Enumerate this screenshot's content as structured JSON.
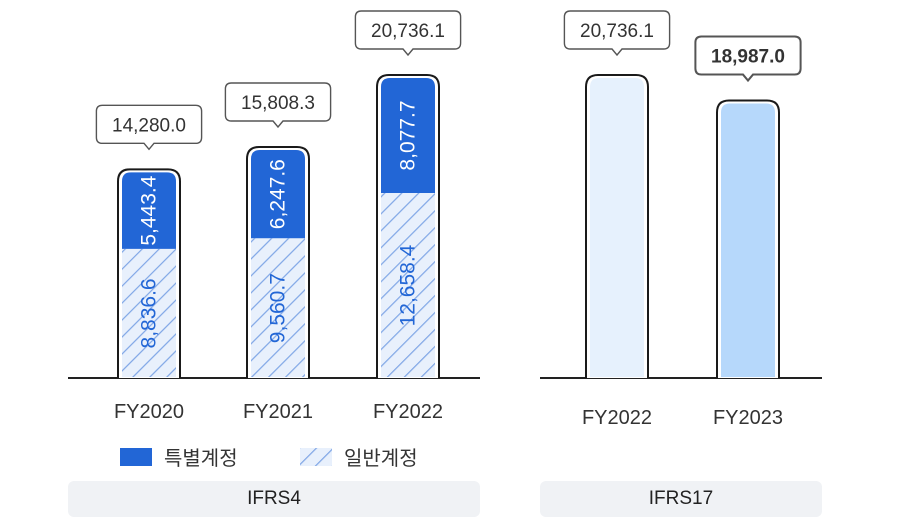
{
  "colors": {
    "special": "#2266d6",
    "general_stripe": "#7fa6e6",
    "general_bg": "#e8f0fc",
    "value_text": "#2266d6",
    "ifrs17_fy2022": "#e6f1fd",
    "ifrs17_fy2023": "#b6d8fb",
    "axis": "#222222",
    "tick": "#333333"
  },
  "legend": {
    "special_label": "특별계정",
    "general_label": "일반계정"
  },
  "groups": {
    "ifrs4_label": "IFRS4",
    "ifrs17_label": "IFRS17"
  },
  "chart_data": [
    {
      "type": "bar",
      "stacked": true,
      "group": "IFRS4",
      "categories": [
        "FY2020",
        "FY2021",
        "FY2022"
      ],
      "series": [
        {
          "name": "일반계정",
          "values": [
            8836.6,
            9560.7,
            12658.4
          ],
          "labels": [
            "8,836.6",
            "9,560.7",
            "12,658.4"
          ]
        },
        {
          "name": "특별계정",
          "values": [
            5443.4,
            6247.6,
            8077.7
          ],
          "labels": [
            "5,443.4",
            "6,247.6",
            "8,077.7"
          ]
        }
      ],
      "totals": [
        14280.0,
        15808.3,
        20736.1
      ],
      "total_labels": [
        "14,280.0",
        "15,808.3",
        "20,736.1"
      ],
      "legend": "bottom"
    },
    {
      "type": "bar",
      "group": "IFRS17",
      "categories": [
        "FY2022",
        "FY2023"
      ],
      "values": [
        20736.1,
        18987.0
      ],
      "value_labels": [
        "20,736.1",
        "18,987.0"
      ],
      "emphasized_index": 1
    }
  ]
}
